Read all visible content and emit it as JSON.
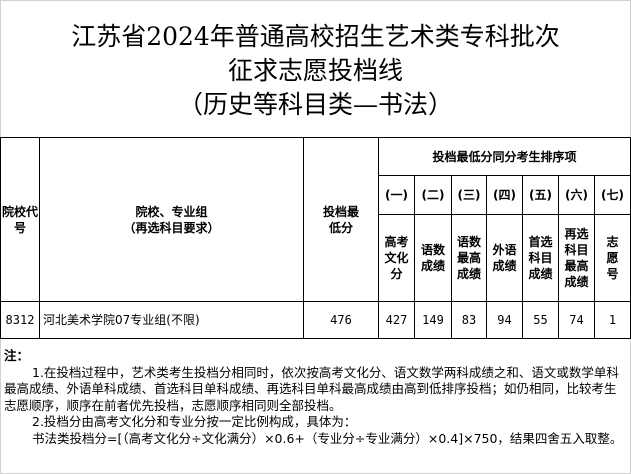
{
  "title": {
    "line1": "江苏省2024年普通高校招生艺术类专科批次",
    "line2": "征求志愿投档线",
    "line3": "（历史等科目类—书法）"
  },
  "table": {
    "headers": {
      "code": "院校代号",
      "school": "院校、专业组",
      "school_sub": "（再选科目要求）",
      "min_score": "投档最低分",
      "tie_group": "投档最低分同分考生排序项",
      "order": [
        "(一)",
        "(二)",
        "(三)",
        "(四)",
        "(五)",
        "(六)",
        "(七)"
      ],
      "items": [
        "高考文化分",
        "语数成绩",
        "语数最高成绩",
        "外语成绩",
        "首选科目成绩",
        "再选科目最高成绩",
        "志愿号"
      ]
    },
    "rows": [
      {
        "code": "8312",
        "school": "河北美术学院07专业组(不限)",
        "min_score": "476",
        "items": [
          "427",
          "149",
          "83",
          "94",
          "55",
          "74",
          "1"
        ]
      }
    ]
  },
  "notes": {
    "label": "注：",
    "n1": "1.在投档过程中，艺术类考生投档分相同时，依次按高考文化分、语文数学两科成绩之和、语文或数学单科最高成绩、外语单科成绩、首选科目单科成绩、再选科目单科最高成绩由高到低排序投档；如仍相同，比较考生志愿顺序，顺序在前者优先投档，志愿顺序相同则全部投档。",
    "n2": "2.投档分由高考文化分和专业分按一定比例构成，具体为：",
    "n3": "书法类投档分=[（高考文化分÷文化满分）×0.6+（专业分÷专业满分）×0.4]×750，结果四舍五入取整。"
  }
}
